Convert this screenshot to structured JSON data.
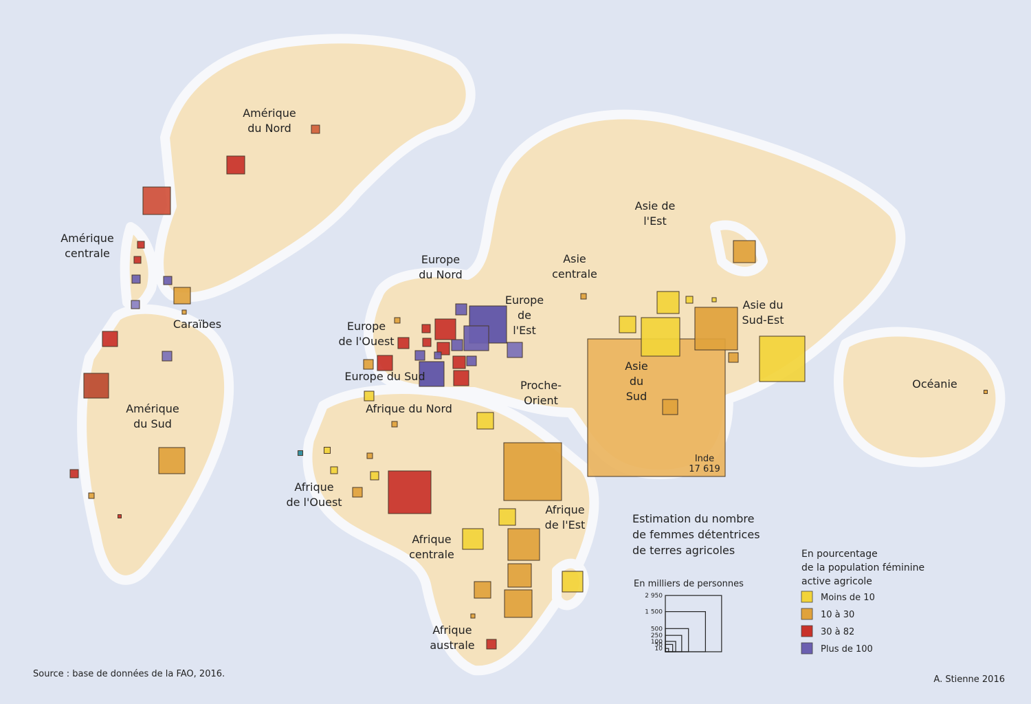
{
  "regions": [
    {
      "lines": [
        "Amérique",
        "du Nord"
      ]
    },
    {
      "lines": [
        "Amérique",
        "centrale"
      ]
    },
    {
      "lines": [
        "Caraïbes"
      ]
    },
    {
      "lines": [
        "Amérique",
        "du Sud"
      ]
    },
    {
      "lines": [
        "Europe",
        "du Nord"
      ]
    },
    {
      "lines": [
        "Europe",
        "de",
        "l'Est"
      ]
    },
    {
      "lines": [
        "Europe",
        "de l'Ouest"
      ]
    },
    {
      "lines": [
        "Europe du Sud"
      ]
    },
    {
      "lines": [
        "Afrique du Nord"
      ]
    },
    {
      "lines": [
        "Asie",
        "centrale"
      ]
    },
    {
      "lines": [
        "Proche-",
        "Orient"
      ]
    },
    {
      "lines": [
        "Asie de",
        "l'Est"
      ]
    },
    {
      "lines": [
        "Asie du",
        "Sud-Est"
      ]
    },
    {
      "lines": [
        "Asie",
        "du",
        "Sud"
      ]
    },
    {
      "lines": [
        "Océanie"
      ]
    },
    {
      "lines": [
        "Afrique",
        "de l'Ouest"
      ]
    },
    {
      "lines": [
        "Afrique",
        "de l'Est"
      ]
    },
    {
      "lines": [
        "Afrique",
        "centrale"
      ]
    },
    {
      "lines": [
        "Afrique",
        "australe"
      ]
    }
  ],
  "squares": [
    {
      "value": 63,
      "color": "#d0603a"
    },
    {
      "value": 298,
      "color": "#c8322a"
    },
    {
      "value": 704,
      "color": "#d0503a"
    },
    {
      "value": 44,
      "color": "#c8322a"
    },
    {
      "value": 44,
      "color": "#c8322a"
    },
    {
      "value": 63,
      "color": "#6b5fb0"
    },
    {
      "value": 63,
      "color": "#6b5fb0"
    },
    {
      "value": 63,
      "color": "#8a7fc0"
    },
    {
      "value": 254,
      "color": "#e0a23c"
    },
    {
      "value": 16,
      "color": "#e0a23c"
    },
    {
      "value": 213,
      "color": "#c8322a"
    },
    {
      "value": 571,
      "color": "#bb4a30"
    },
    {
      "value": 86,
      "color": "#7a70b8"
    },
    {
      "value": 636,
      "color": "#e0a23c"
    },
    {
      "value": 63,
      "color": "#c8322a"
    },
    {
      "value": 28,
      "color": "#e0a23c"
    },
    {
      "value": 11,
      "color": "#c8322a"
    },
    {
      "value": 113,
      "color": "#6b5fb0"
    },
    {
      "value": 1284,
      "color": "#5a50a8"
    },
    {
      "value": 571,
      "color": "#6b5fb0"
    },
    {
      "value": 396,
      "color": "#c8322a"
    },
    {
      "value": 63,
      "color": "#c8322a"
    },
    {
      "value": 113,
      "color": "#c8322a"
    },
    {
      "value": 63,
      "color": "#c8322a"
    },
    {
      "value": 143,
      "color": "#c8322a"
    },
    {
      "value": 113,
      "color": "#6b5fb0"
    },
    {
      "value": 86,
      "color": "#6b5fb0"
    },
    {
      "value": 44,
      "color": "#6b5fb0"
    },
    {
      "value": 143,
      "color": "#c8322a"
    },
    {
      "value": 86,
      "color": "#6b5fb0"
    },
    {
      "value": 213,
      "color": "#7a70b8"
    },
    {
      "value": 213,
      "color": "#c8322a"
    },
    {
      "value": 86,
      "color": "#e0a23c"
    },
    {
      "value": 571,
      "color": "#5a50a8"
    },
    {
      "value": 213,
      "color": "#c8322a"
    },
    {
      "value": 28,
      "color": "#e0a23c"
    },
    {
      "value": 86,
      "color": "#f2d43a"
    },
    {
      "value": 28,
      "color": "#e0a23c"
    },
    {
      "value": 254,
      "color": "#f2d43a"
    },
    {
      "value": 22,
      "color": "#2a8a9a"
    },
    {
      "value": 36,
      "color": "#f2d43a"
    },
    {
      "value": 28,
      "color": "#e0a23c"
    },
    {
      "value": 44,
      "color": "#f2d43a"
    },
    {
      "value": 63,
      "color": "#f2d43a"
    },
    {
      "value": 86,
      "color": "#e0a23c"
    },
    {
      "value": 1693,
      "color": "#c8322a"
    },
    {
      "value": 3107,
      "color": "#e0a23c"
    },
    {
      "value": 254,
      "color": "#f2d43a"
    },
    {
      "value": 396,
      "color": "#f2d43a"
    },
    {
      "value": 932,
      "color": "#e0a23c"
    },
    {
      "value": 509,
      "color": "#e0a23c"
    },
    {
      "value": 254,
      "color": "#e0a23c"
    },
    {
      "value": 704,
      "color": "#e0a23c"
    },
    {
      "value": 396,
      "color": "#f2d43a"
    },
    {
      "value": 16,
      "color": "#e0a23c"
    },
    {
      "value": 86,
      "color": "#c8322a"
    },
    {
      "value": 17619,
      "color": "#eab45e",
      "label": "Inde",
      "value_label": "17 619"
    },
    {
      "value": 213,
      "color": "#e0a23c"
    },
    {
      "value": 451,
      "color": "#f2d43a"
    },
    {
      "value": 254,
      "color": "#f2d43a"
    },
    {
      "value": 1381,
      "color": "#f2d43a"
    },
    {
      "value": 1693,
      "color": "#e0a23c"
    },
    {
      "value": 44,
      "color": "#f2d43a"
    },
    {
      "value": 16,
      "color": "#f2d43a"
    },
    {
      "value": 86,
      "color": "#e0a23c"
    },
    {
      "value": 1918,
      "color": "#f2d43a"
    },
    {
      "value": 451,
      "color": "#e0a23c"
    },
    {
      "value": 28,
      "color": "#e0a23c"
    },
    {
      "value": 11,
      "color": "#e0a23c"
    }
  ],
  "size_legend": {
    "title_lines": [
      "Estimation du nombre",
      "de femmes détentrices",
      "de terres agricoles"
    ],
    "unit": "En milliers de personnes",
    "sizes": [
      {
        "value": 2950,
        "label": "2 950"
      },
      {
        "value": 1500,
        "label": "1 500"
      },
      500,
      250,
      100,
      50,
      10
    ]
  },
  "color_legend": {
    "title_lines": [
      "En pourcentage",
      "de la population féminine",
      "active agricole"
    ],
    "items": [
      {
        "label": "Moins de 10",
        "color": "#f2d43a"
      },
      {
        "label": "10 à 30",
        "color": "#e0a23c"
      },
      {
        "label": "30 à 82",
        "color": "#c8322a"
      },
      {
        "label": "Plus de 100",
        "color": "#6b5fb0"
      }
    ]
  },
  "source": "Source : base de données de la FAO, 2016.",
  "signature": "A. Stienne 2016"
}
